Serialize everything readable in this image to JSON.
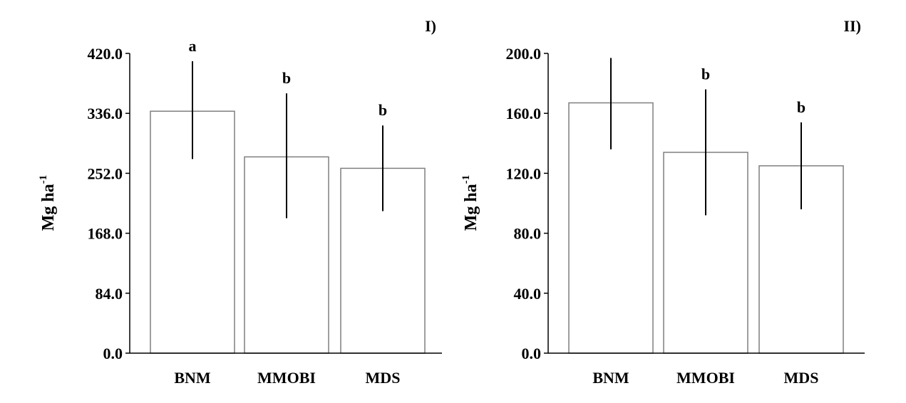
{
  "colors": {
    "bar_fill": "#ffffff",
    "bar_stroke": "#7f7f7f",
    "axis": "#000000",
    "error_bar": "#000000",
    "text": "#000000"
  },
  "chart_data": [
    {
      "type": "bar",
      "panel_label": "I)",
      "ylabel": "Mg ha",
      "ylabel_superscript": "-1",
      "categories": [
        "BNM",
        "MMOBI",
        "MDS"
      ],
      "values": [
        339,
        275,
        259
      ],
      "error_low": [
        272,
        189,
        199
      ],
      "error_high": [
        409,
        364,
        319
      ],
      "significance": [
        "a",
        "b",
        "b"
      ],
      "ylim": [
        0,
        420
      ],
      "yticks": [
        "0.0",
        "84.0",
        "168.0",
        "252.0",
        "336.0",
        "420.0"
      ],
      "grid": false
    },
    {
      "type": "bar",
      "panel_label": "II)",
      "ylabel": "Mg ha",
      "ylabel_superscript": "-1",
      "categories": [
        "BNM",
        "MMOBI",
        "MDS"
      ],
      "values": [
        167,
        134,
        125
      ],
      "error_low": [
        136,
        92,
        96
      ],
      "error_high": [
        197,
        176,
        154
      ],
      "significance": [
        "",
        "b",
        "b"
      ],
      "ylim": [
        0,
        200
      ],
      "yticks": [
        "0.0",
        "40.0",
        "80.0",
        "120.0",
        "160.0",
        "200.0"
      ],
      "grid": false
    }
  ]
}
